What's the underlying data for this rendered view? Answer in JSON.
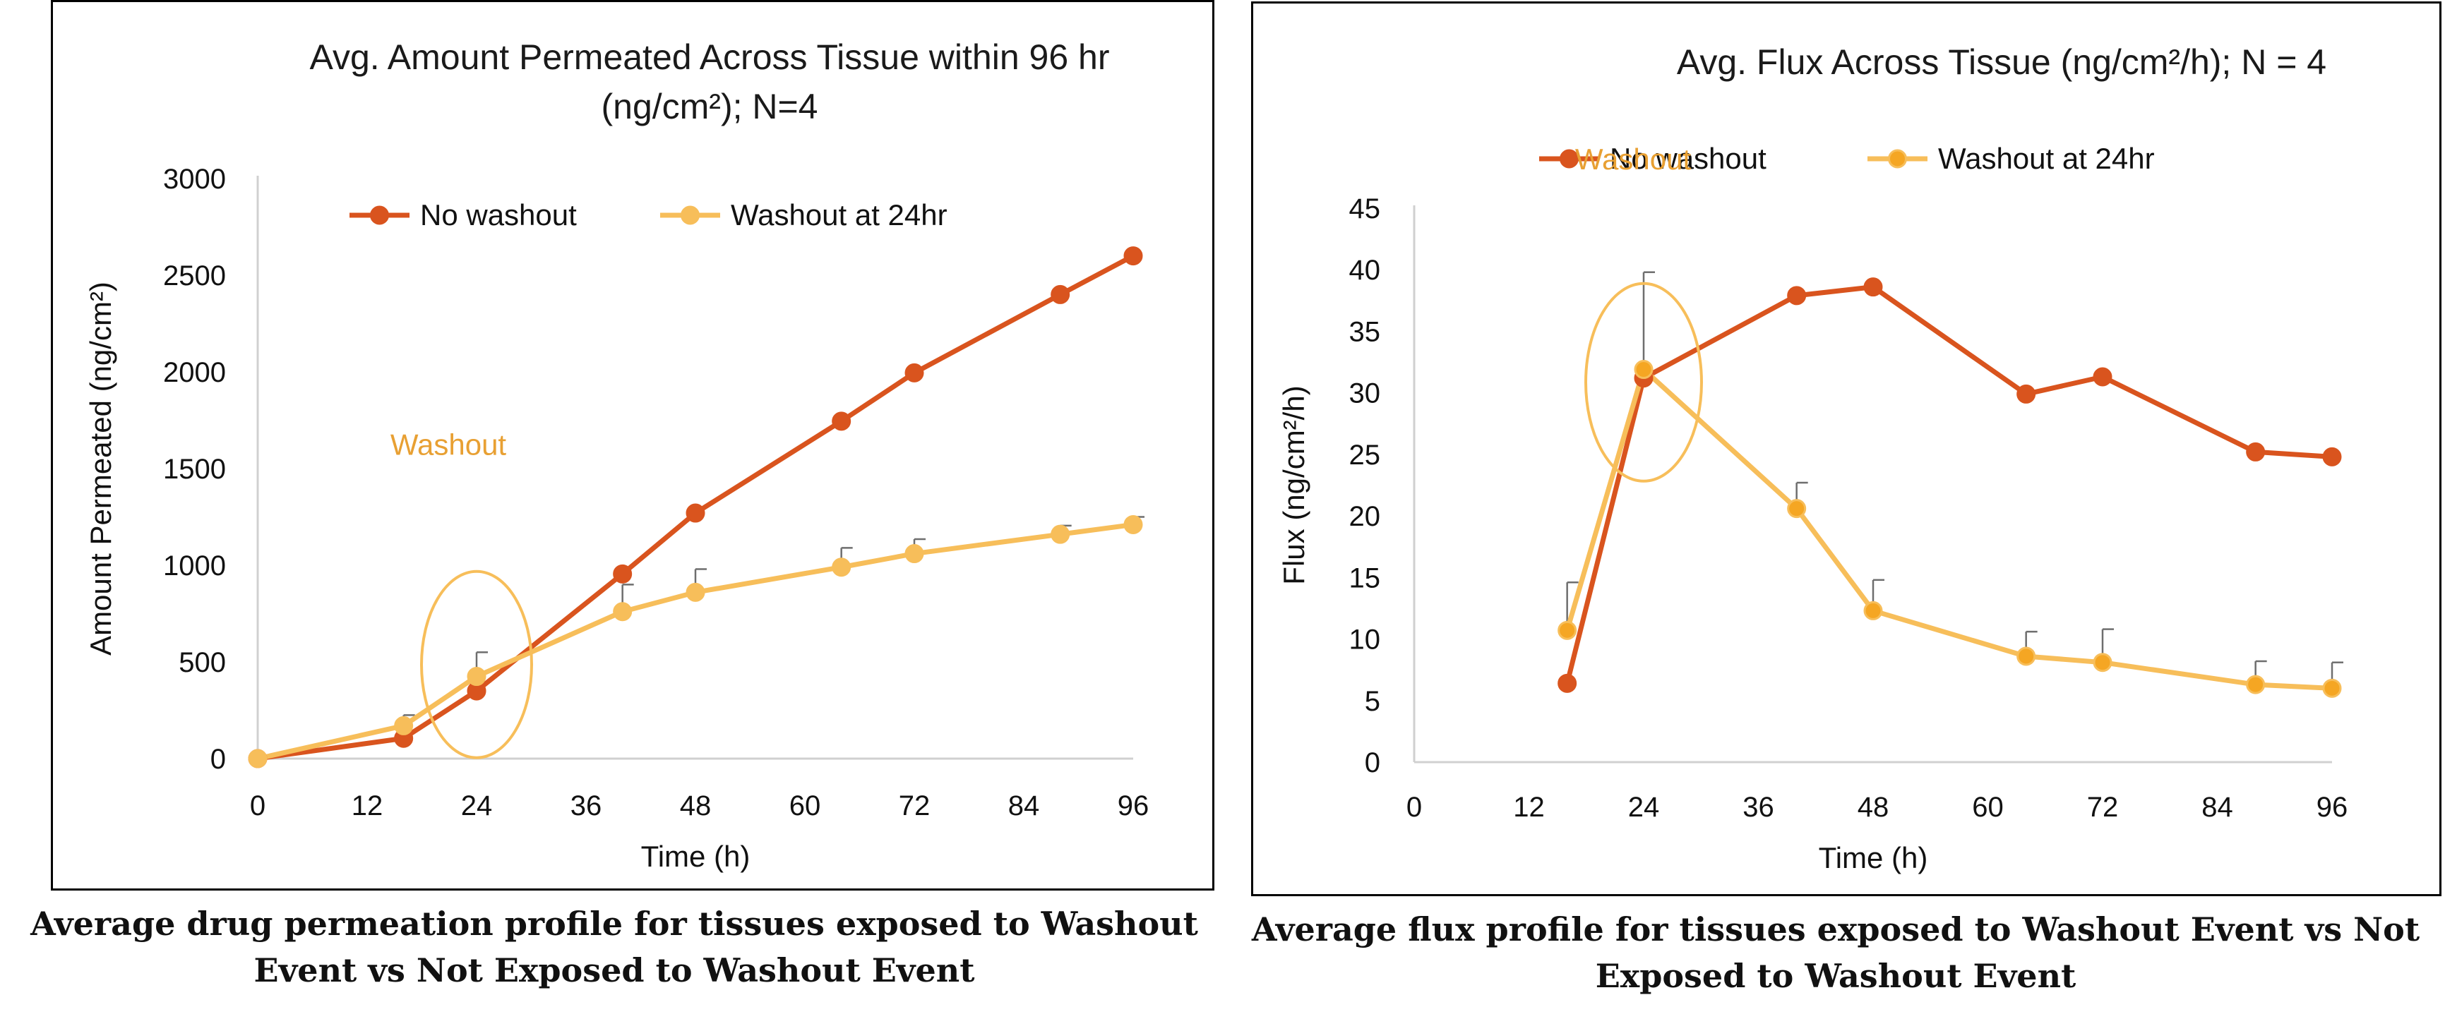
{
  "charts": [
    {
      "id": "left",
      "caption": "Average drug permeation profile for tissues exposed to Washout Event vs Not Exposed to Washout Event",
      "title_lines": [
        "Avg. Amount Permeated Across Tissue within 96 hr",
        "(ng/cm²); N=4"
      ],
      "annotation": "Washout",
      "colors": {
        "no_washout": "#D9541E",
        "washout": "#F7BE5A",
        "annotation": "#E8A033",
        "error": "#6E6E6E"
      }
    },
    {
      "id": "right",
      "caption": "Average flux profile for tissues exposed to Washout Event vs Not Exposed to Washout Event",
      "title_lines": [
        "Avg. Flux Across Tissue (ng/cm²/h); N = 4"
      ],
      "annotation": "Washout",
      "colors": {
        "no_washout": "#D9541E",
        "washout": "#F7BE5A",
        "annotation": "#E8A033",
        "error": "#6E6E6E"
      }
    }
  ],
  "chart_data": [
    {
      "type": "line",
      "title": "Avg. Amount Permeated Across Tissue within 96 hr (ng/cm²); N=4",
      "xlabel": "Time (h)",
      "ylabel": "Amount Permeated (ng/cm²)",
      "xlim": [
        0,
        96
      ],
      "ylim": [
        0,
        3000
      ],
      "xticks": [
        0,
        12,
        24,
        36,
        48,
        60,
        72,
        84,
        96
      ],
      "yticks": [
        0,
        500,
        1000,
        1500,
        2000,
        2500,
        3000
      ],
      "grid": false,
      "legend": "top",
      "series": [
        {
          "name": "No washout",
          "x": [
            0,
            16,
            24,
            40,
            48,
            64,
            72,
            88,
            96
          ],
          "y": [
            0,
            105,
            350,
            955,
            1270,
            1745,
            1995,
            2400,
            2600
          ]
        },
        {
          "name": "Washout at 24hr",
          "x": [
            0,
            16,
            24,
            40,
            48,
            64,
            72,
            88,
            96
          ],
          "y": [
            0,
            170,
            425,
            760,
            860,
            990,
            1060,
            1160,
            1210
          ],
          "error_upper": [
            0,
            55,
            125,
            140,
            120,
            100,
            75,
            45,
            40
          ]
        }
      ],
      "annotations": [
        {
          "text": "Washout",
          "x": 24,
          "y": 450
        }
      ]
    },
    {
      "type": "line",
      "title": "Avg. Flux Across Tissue (ng/cm²/h); N = 4",
      "xlabel": "Time (h)",
      "ylabel": "Flux (ng/cm²/h)",
      "xlim": [
        0,
        96
      ],
      "ylim": [
        0,
        45
      ],
      "xticks": [
        0,
        12,
        24,
        36,
        48,
        60,
        72,
        84,
        96
      ],
      "yticks": [
        0,
        5,
        10,
        15,
        20,
        25,
        30,
        35,
        40,
        45
      ],
      "grid": false,
      "legend": "top",
      "series": [
        {
          "name": "No washout",
          "x": [
            16,
            24,
            40,
            48,
            64,
            72,
            88,
            96
          ],
          "y": [
            6.4,
            31.2,
            37.9,
            38.6,
            29.9,
            31.3,
            25.2,
            24.8
          ]
        },
        {
          "name": "Washout at 24hr",
          "x": [
            16,
            24,
            40,
            48,
            64,
            72,
            88,
            96
          ],
          "y": [
            10.7,
            31.9,
            20.6,
            12.3,
            8.6,
            8.1,
            6.3,
            6.0
          ],
          "error_upper": [
            3.9,
            7.9,
            2.1,
            2.5,
            2.0,
            2.7,
            1.9,
            2.1
          ]
        }
      ],
      "annotations": [
        {
          "text": "Washout",
          "x": 24,
          "y": 32
        }
      ]
    }
  ]
}
